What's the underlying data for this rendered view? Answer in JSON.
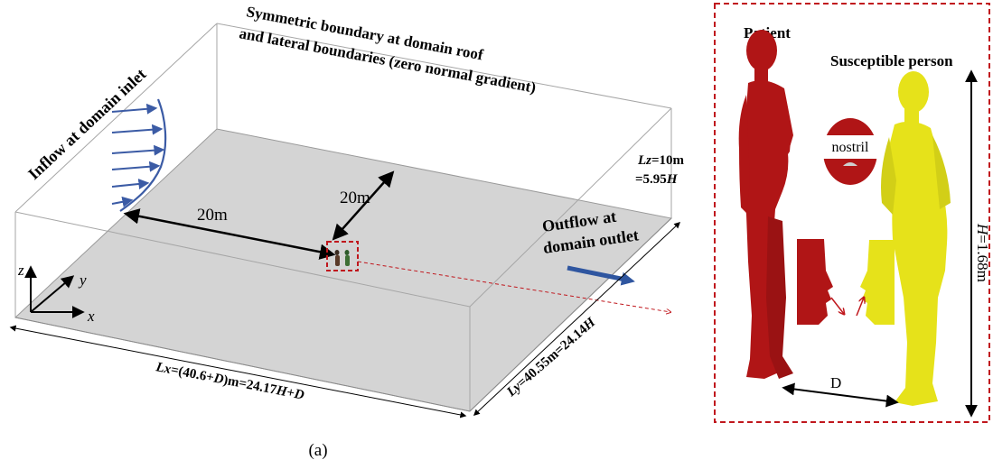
{
  "domain_labels": {
    "roof_boundary_line1": "Symmetric boundary at domain roof",
    "roof_boundary_line2": "and lateral boundaries (zero normal gradient)",
    "inflow": "Inflow at domain inlet",
    "outflow_line1": "Outflow at",
    "outflow_line2": "domain outlet",
    "lz_line1_var": "Lz",
    "lz_line1_val": "=10m",
    "lz_line2_pre": "=5.95",
    "lz_line2_var": "H",
    "dist_x": "20m",
    "dist_y": "20m",
    "lx_var": "Lx",
    "lx_mid1": "=(40.6+",
    "lx_d1": "D",
    "lx_mid2": ")m=24.17",
    "lx_h": "H",
    "lx_plus": "+",
    "lx_d2": "D",
    "ly_var": "Ly",
    "ly_mid": "=40.55m=24.14",
    "ly_h": "H",
    "axis_x": "x",
    "axis_y": "y",
    "axis_z": "z"
  },
  "inset": {
    "patient": "Patient",
    "susceptible": "Susceptible person",
    "nostril": "nostril",
    "height_var": "H",
    "height_val": "=1.68m",
    "distance": "D"
  },
  "caption": "(a)",
  "colors": {
    "patient": "#b01516",
    "susceptible": "#e6e21a",
    "floor": "#d4d4d4",
    "inflow_arrow": "#3b5ba5",
    "outflow_arrow": "#2f56a0",
    "dashed_frame": "#c0171d"
  }
}
